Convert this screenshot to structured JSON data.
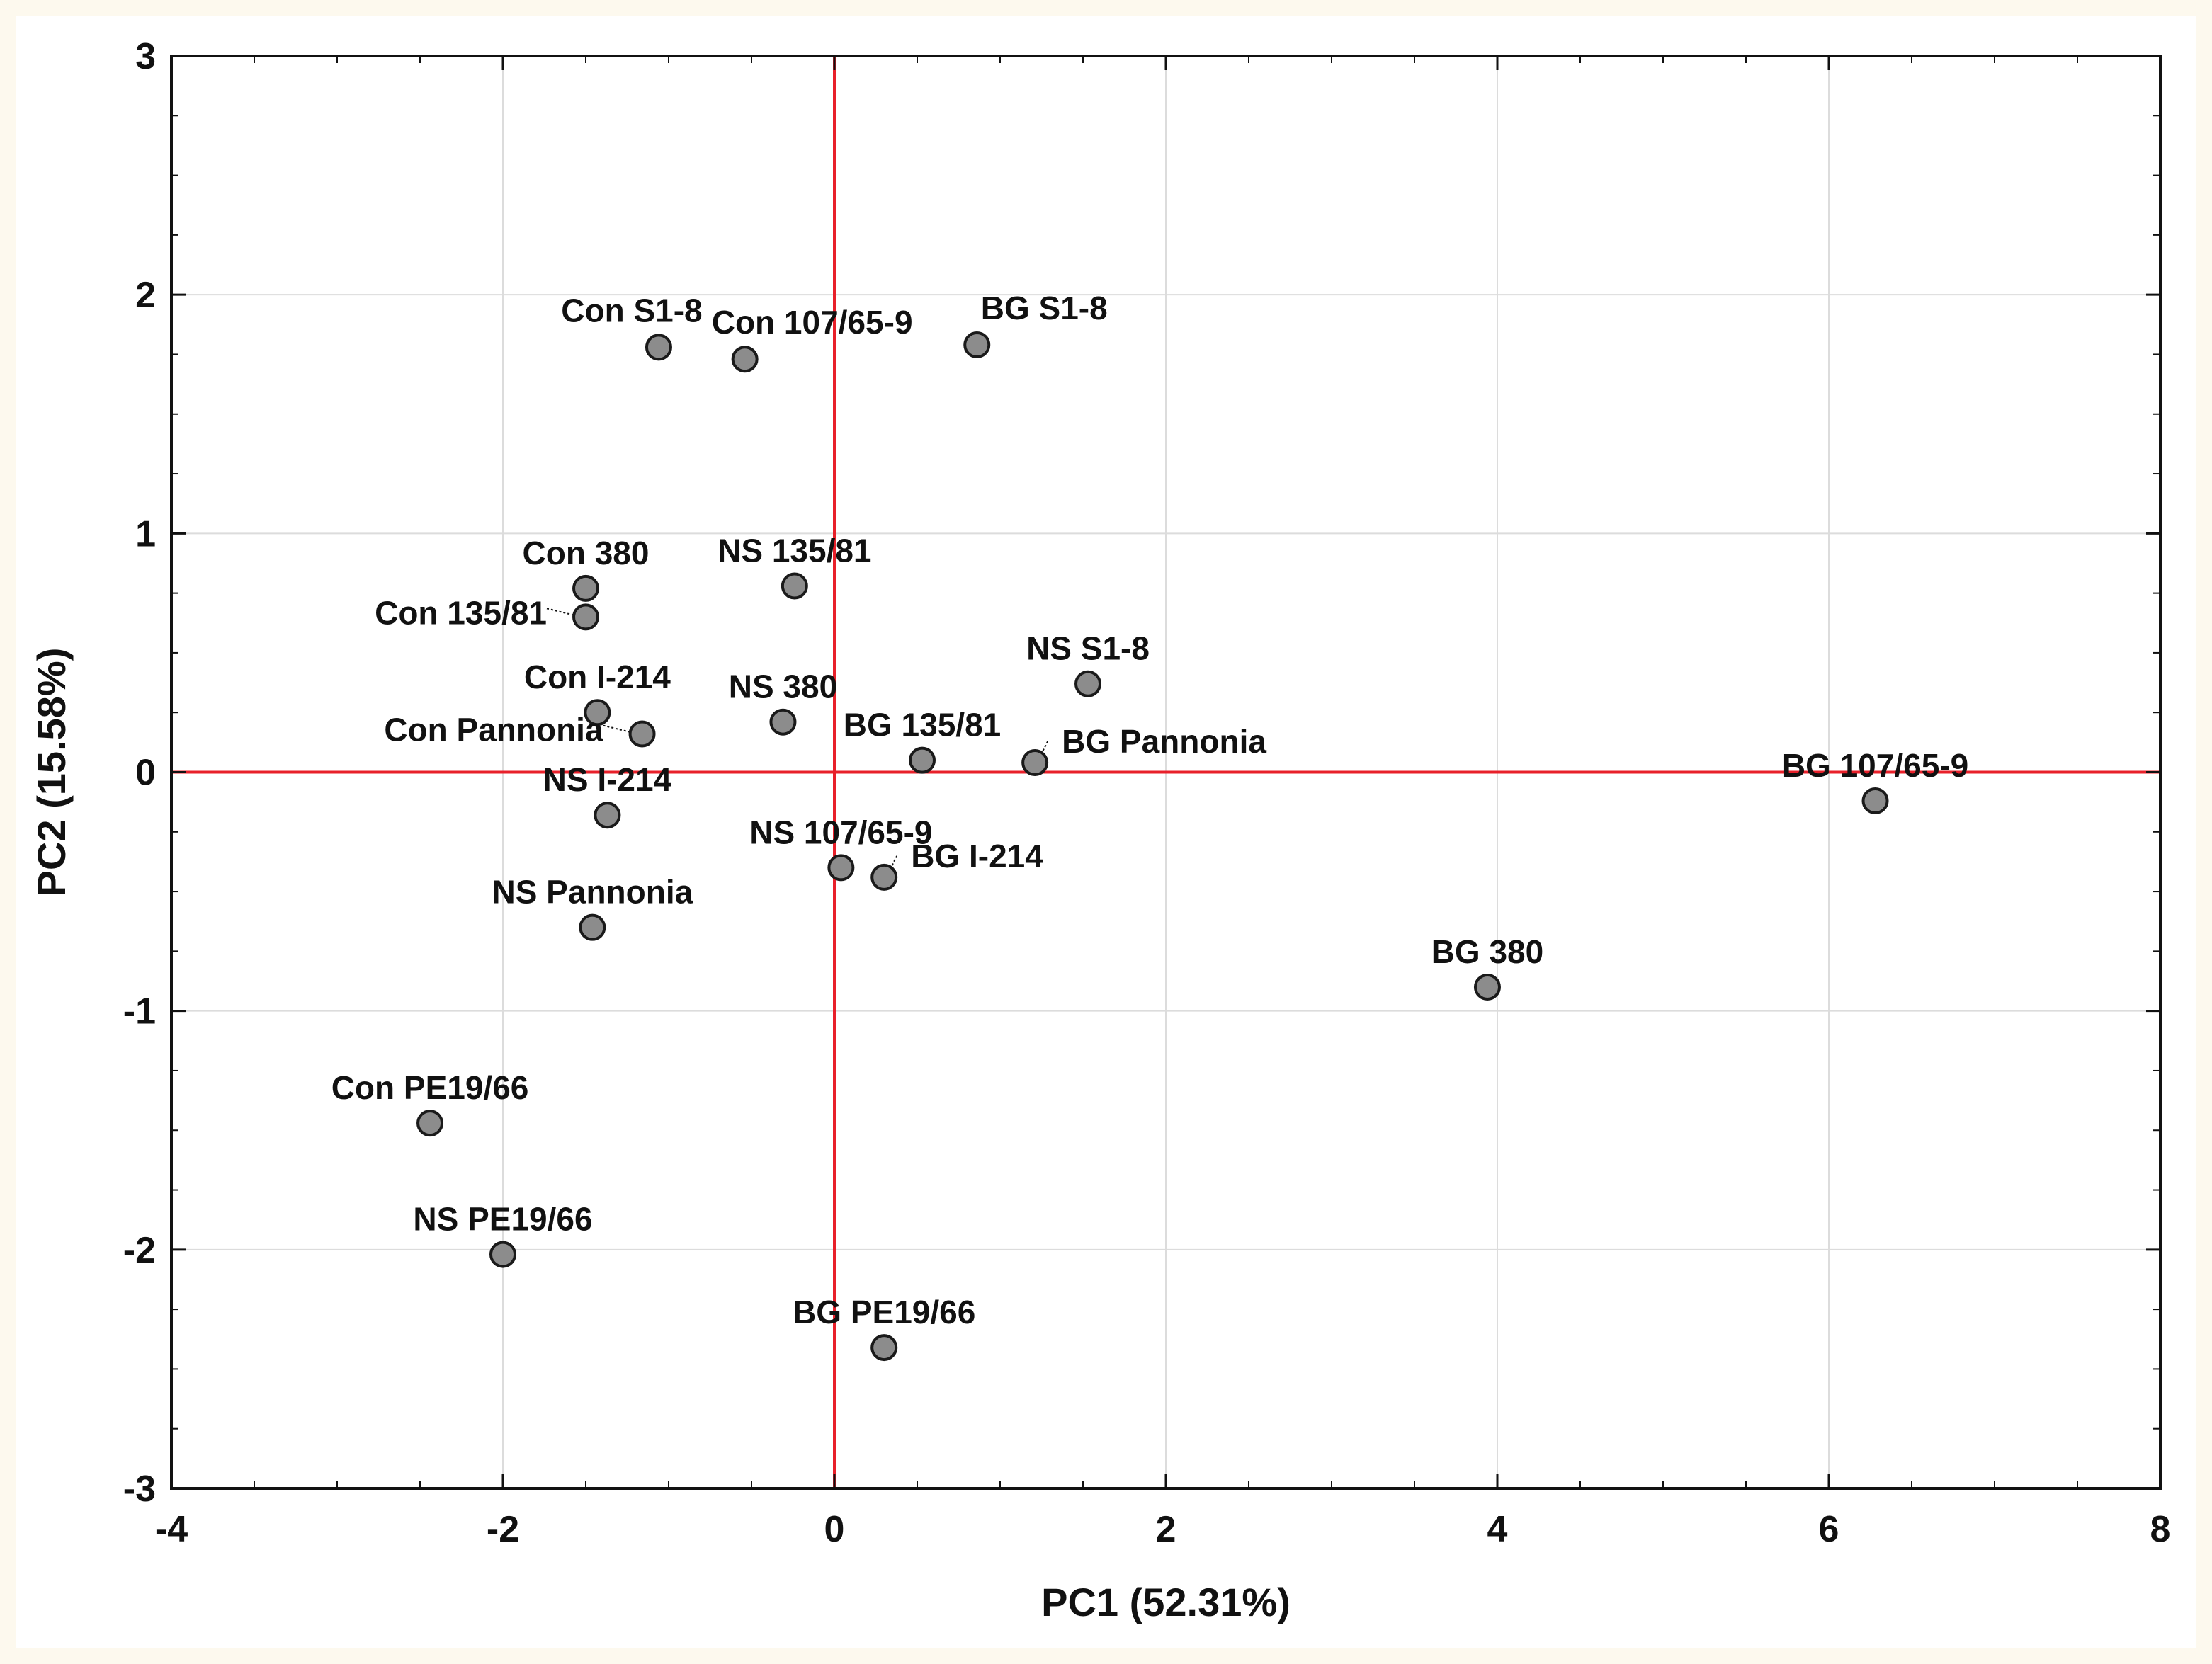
{
  "chart_data": {
    "type": "scatter",
    "title": "",
    "xlabel": "PC1 (52.31%)",
    "ylabel": "PC2 (15.58%)",
    "xlim": [
      -4,
      8
    ],
    "ylim": [
      -3,
      3
    ],
    "xticks": [
      -4,
      -2,
      0,
      2,
      4,
      6,
      8
    ],
    "yticks": [
      -3,
      -2,
      -1,
      0,
      1,
      2,
      3
    ],
    "grid": true,
    "reference_lines": {
      "x": 0,
      "y": 0
    },
    "colors": {
      "reference_line": "#e8202a",
      "marker_fill": "#8c8c8c",
      "marker_stroke": "#1a1a1a",
      "grid": "#dcdcdc"
    },
    "points": [
      {
        "label": "Con S1-8",
        "x": -1.06,
        "y": 1.78,
        "anchor": "above-left"
      },
      {
        "label": "Con 107/65-9",
        "x": -0.54,
        "y": 1.73,
        "anchor": "above-right"
      },
      {
        "label": "BG S1-8",
        "x": 0.86,
        "y": 1.79,
        "anchor": "above-right"
      },
      {
        "label": "Con 380",
        "x": -1.5,
        "y": 0.77,
        "anchor": "above"
      },
      {
        "label": "NS 135/81",
        "x": -0.24,
        "y": 0.78,
        "anchor": "above"
      },
      {
        "label": "Con 135/81",
        "x": -1.5,
        "y": 0.65,
        "anchor": "left"
      },
      {
        "label": "NS S1-8",
        "x": 1.53,
        "y": 0.37,
        "anchor": "above"
      },
      {
        "label": "Con I-214",
        "x": -1.43,
        "y": 0.25,
        "anchor": "above"
      },
      {
        "label": "NS 380",
        "x": -0.31,
        "y": 0.21,
        "anchor": "above"
      },
      {
        "label": "Con Pannonia",
        "x": -1.16,
        "y": 0.16,
        "anchor": "left"
      },
      {
        "label": "BG 135/81",
        "x": 0.53,
        "y": 0.05,
        "anchor": "above"
      },
      {
        "label": "BG Pannonia",
        "x": 1.21,
        "y": 0.04,
        "anchor": "right"
      },
      {
        "label": "BG 107/65-9",
        "x": 6.28,
        "y": -0.12,
        "anchor": "above"
      },
      {
        "label": "NS I-214",
        "x": -1.37,
        "y": -0.18,
        "anchor": "above"
      },
      {
        "label": "NS 107/65-9",
        "x": 0.04,
        "y": -0.4,
        "anchor": "above"
      },
      {
        "label": "BG I-214",
        "x": 0.3,
        "y": -0.44,
        "anchor": "right"
      },
      {
        "label": "NS Pannonia",
        "x": -1.46,
        "y": -0.65,
        "anchor": "above"
      },
      {
        "label": "BG 380",
        "x": 3.94,
        "y": -0.9,
        "anchor": "above"
      },
      {
        "label": "Con PE19/66",
        "x": -2.44,
        "y": -1.47,
        "anchor": "above"
      },
      {
        "label": "NS PE19/66",
        "x": -2.0,
        "y": -2.02,
        "anchor": "above"
      },
      {
        "label": "BG PE19/66",
        "x": 0.3,
        "y": -2.41,
        "anchor": "above"
      }
    ]
  }
}
